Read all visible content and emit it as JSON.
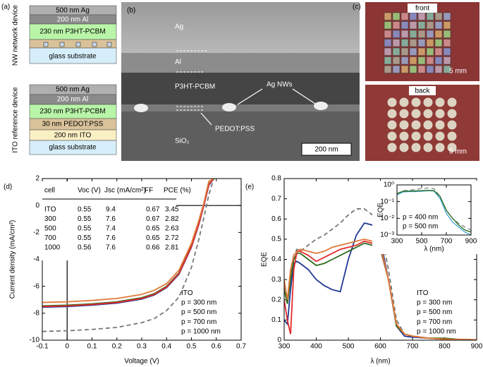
{
  "panel_a": {
    "label": "(a)",
    "nw_device": {
      "title": "NW network device",
      "layers": [
        "500 nm Ag",
        "200 nm Al",
        "230 nm P3HT-PCBM",
        "glass substrate"
      ]
    },
    "ito_device": {
      "title": "ITO reference device",
      "layers": [
        "500 nm Ag",
        "200 nm Al",
        "230 nm P3HT-PCBM",
        "30 nm PEDOT:PSS",
        "200 nm ITO",
        "glass substrate"
      ]
    }
  },
  "panel_b": {
    "label": "(b)",
    "ag": "Ag",
    "al": "Al",
    "p3ht": "P3HT-PCBM",
    "nws": "Ag NWs",
    "pedot": "PEDOT:PSS",
    "sio2": "SiO₂",
    "scale_bar": "200 nm"
  },
  "panel_c": {
    "label": "(c)",
    "front": {
      "title": "front",
      "scale_bar": "5 mm"
    },
    "back": {
      "title": "back",
      "scale_bar": "5 mm"
    }
  },
  "chart_data": [
    {
      "type": "line",
      "panel_label": "(d)",
      "x_label": "Voltage (V)",
      "y_label": "Current density (mA/cm²)",
      "xlim": [
        -0.1,
        0.7
      ],
      "xticks": [
        -0.1,
        0,
        0.1,
        0.2,
        0.3,
        0.4,
        0.5,
        0.6,
        0.7
      ],
      "ylim": [
        -10,
        2
      ],
      "yticks": [
        -10,
        -8,
        -6,
        -4,
        -2,
        0,
        2
      ],
      "axes_through_origin": true,
      "legend": "lower right",
      "x": [
        -0.1,
        0,
        0.1,
        0.2,
        0.3,
        0.35,
        0.4,
        0.45,
        0.5,
        0.53,
        0.55,
        0.57,
        0.59
      ],
      "series": [
        {
          "name": "ITO",
          "color": "#777777",
          "dash": true,
          "values": [
            -9.35,
            -9.3,
            -9.2,
            -9.05,
            -8.7,
            -8.4,
            -7.8,
            -6.8,
            -4.6,
            -2.5,
            -0.9,
            0.8,
            2.0
          ]
        },
        {
          "name": "p = 300 nm",
          "color": "#1f3a93",
          "values": [
            -7.55,
            -7.5,
            -7.4,
            -7.25,
            -6.95,
            -6.65,
            -6.1,
            -5.1,
            -3.1,
            -1.4,
            0.0,
            1.5,
            2.0
          ]
        },
        {
          "name": "p = 500 nm",
          "color": "#2e6b1f",
          "values": [
            -7.45,
            -7.4,
            -7.3,
            -7.15,
            -6.85,
            -6.55,
            -6.0,
            -5.0,
            -3.0,
            -1.3,
            0.1,
            1.6,
            2.0
          ]
        },
        {
          "name": "p = 700 nm",
          "color": "#e52b2b",
          "values": [
            -7.5,
            -7.45,
            -7.35,
            -7.2,
            -6.9,
            -6.6,
            -6.05,
            -5.05,
            -3.05,
            -1.35,
            0.05,
            1.55,
            2.0
          ]
        },
        {
          "name": "p = 1000 nm",
          "color": "#e07b39",
          "values": [
            -7.2,
            -7.15,
            -7.05,
            -6.9,
            -6.6,
            -6.3,
            -5.8,
            -4.8,
            -2.8,
            -1.1,
            0.2,
            1.8,
            2.0
          ]
        }
      ],
      "table": {
        "header": [
          "cell",
          "Voc (V)",
          "Jsc (mA/cm²)",
          "FF",
          "PCE (%)"
        ],
        "rows": [
          [
            "ITO",
            0.55,
            9.4,
            0.67,
            3.45
          ],
          [
            "300",
            0.55,
            7.6,
            0.67,
            2.82
          ],
          [
            "500",
            0.55,
            7.4,
            0.65,
            2.63
          ],
          [
            "700",
            0.55,
            7.6,
            0.65,
            2.72
          ],
          [
            "1000",
            0.56,
            7.6,
            0.66,
            2.81
          ]
        ]
      }
    },
    {
      "type": "line",
      "panel_label": "(e)",
      "x_label": "λ (nm)",
      "y_label": "EQE",
      "xlim": [
        300,
        900
      ],
      "xticks": [
        300,
        400,
        500,
        600,
        700,
        800,
        900
      ],
      "ylim": [
        0,
        0.8
      ],
      "yticks": [
        0,
        0.1,
        0.2,
        0.3,
        0.4,
        0.5,
        0.6,
        0.7,
        0.8
      ],
      "legend": "lower right",
      "x": [
        300,
        310,
        320,
        330,
        340,
        350,
        375,
        400,
        425,
        450,
        475,
        500,
        525,
        550,
        575,
        600,
        625,
        650,
        675,
        700,
        750,
        800,
        850,
        900
      ],
      "series": [
        {
          "name": "ITO",
          "color": "#777777",
          "dash": true,
          "values": [
            0.27,
            0.2,
            0.32,
            0.42,
            0.45,
            0.44,
            0.47,
            0.5,
            0.52,
            0.55,
            0.58,
            0.62,
            0.65,
            0.65,
            0.62,
            0.56,
            0.35,
            0.1,
            0.03,
            0.02,
            0.01,
            0.005,
            0.003,
            0.002
          ]
        },
        {
          "name": "p = 300 nm",
          "color": "#1f3a93",
          "values": [
            0.1,
            0.08,
            0.25,
            0.38,
            0.39,
            0.38,
            0.35,
            0.3,
            0.27,
            0.25,
            0.24,
            0.4,
            0.52,
            0.58,
            0.57,
            0.5,
            0.3,
            0.07,
            0.02,
            0.015,
            0.01,
            0.005,
            0.003,
            0.002
          ]
        },
        {
          "name": "p = 500 nm",
          "color": "#2e6b1f",
          "values": [
            0.25,
            0.18,
            0.3,
            0.4,
            0.43,
            0.43,
            0.4,
            0.37,
            0.38,
            0.4,
            0.42,
            0.44,
            0.46,
            0.48,
            0.47,
            0.45,
            0.3,
            0.07,
            0.03,
            0.02,
            0.01,
            0.01,
            0.003,
            0.002
          ]
        },
        {
          "name": "p = 700 nm",
          "color": "#e52b2b",
          "values": [
            0.2,
            0.1,
            0.03,
            0.35,
            0.44,
            0.44,
            0.42,
            0.39,
            0.41,
            0.43,
            0.45,
            0.46,
            0.47,
            0.49,
            0.48,
            0.46,
            0.3,
            0.08,
            0.03,
            0.02,
            0.01,
            0.005,
            0.003,
            0.002
          ]
        },
        {
          "name": "p = 1000 nm",
          "color": "#e07b39",
          "values": [
            0.3,
            0.2,
            0.35,
            0.42,
            0.44,
            0.45,
            0.44,
            0.43,
            0.44,
            0.46,
            0.47,
            0.48,
            0.49,
            0.5,
            0.49,
            0.47,
            0.3,
            0.08,
            0.03,
            0.02,
            0.01,
            0.005,
            0.003,
            0.002
          ]
        }
      ]
    },
    {
      "type": "line",
      "x_label": "λ (nm)",
      "y_label": "EQE",
      "log_y": true,
      "xlim": [
        300,
        900
      ],
      "xticks": [
        300,
        500,
        700,
        900
      ],
      "ylim": [
        0.001,
        1
      ],
      "yticks": [
        {
          "value": 0.001,
          "label": "10⁻³"
        },
        {
          "value": 0.01,
          "label": "10⁻²"
        },
        {
          "value": 0.1,
          "label": "10⁻¹"
        },
        {
          "value": 1,
          "label": "10⁰"
        }
      ],
      "legend": "lower left",
      "x": [
        300,
        350,
        400,
        450,
        500,
        550,
        600,
        650,
        700,
        750,
        800,
        850,
        900
      ],
      "series": [
        {
          "color": "#888888",
          "dash": true,
          "values": [
            0.3,
            0.45,
            0.48,
            0.55,
            0.6,
            0.65,
            0.6,
            0.2,
            0.03,
            0.01,
            0.005,
            0.003,
            0.002
          ]
        },
        {
          "name": "p = 400 nm",
          "color": "#3fa7d6",
          "values": [
            0.25,
            0.38,
            0.4,
            0.4,
            0.42,
            0.45,
            0.43,
            0.15,
            0.02,
            0.006,
            0.003,
            0.0015,
            0.001
          ]
        },
        {
          "name": "p = 500 nm",
          "color": "#2e6b1f",
          "values": [
            0.3,
            0.42,
            0.43,
            0.44,
            0.45,
            0.47,
            0.46,
            0.2,
            0.03,
            0.01,
            0.004,
            0.002,
            0.0015
          ]
        }
      ]
    }
  ]
}
